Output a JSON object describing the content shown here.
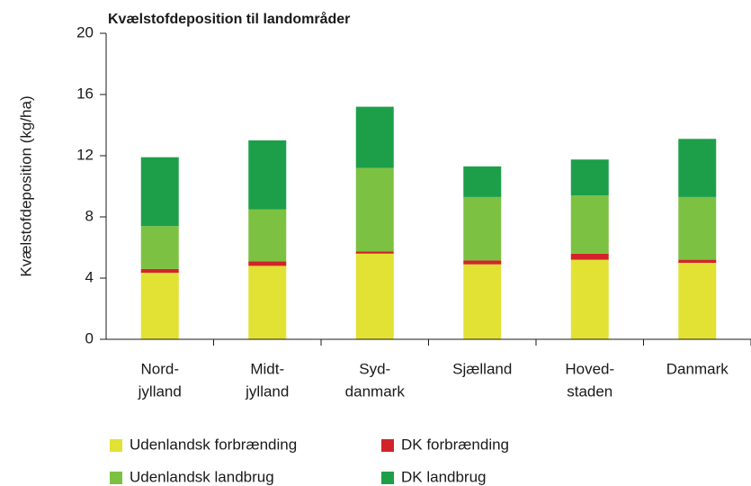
{
  "chart_data": {
    "type": "stacked-bar",
    "title": "Kvælstofdeposition til landområder",
    "y_label": "Kvælstofdeposition (kg/ha)",
    "categories": [
      [
        "Nord-",
        "jylland"
      ],
      [
        "Midt-",
        "jylland"
      ],
      [
        "Syd-",
        "danmark"
      ],
      [
        "Sjælland"
      ],
      [
        "Hoved-",
        "staden"
      ],
      [
        "Danmark"
      ]
    ],
    "series": [
      {
        "name": "Udenlandsk forbrænding",
        "color": "#e1e233",
        "values": [
          4.35,
          4.8,
          5.6,
          4.9,
          5.2,
          5.0
        ]
      },
      {
        "name": "DK forbrænding",
        "color": "#d2232a",
        "values": [
          0.25,
          0.3,
          0.15,
          0.25,
          0.4,
          0.2
        ]
      },
      {
        "name": "Udenlandsk landbrug",
        "color": "#7dc142",
        "values": [
          2.8,
          3.4,
          5.45,
          4.15,
          3.8,
          4.1
        ]
      },
      {
        "name": "DK landbrug",
        "color": "#1d9f4a",
        "values": [
          4.5,
          4.5,
          4.0,
          2.0,
          2.35,
          3.8
        ]
      }
    ],
    "ylim": [
      0,
      20
    ],
    "yticks": [
      0,
      4,
      8,
      12,
      16,
      20
    ]
  }
}
